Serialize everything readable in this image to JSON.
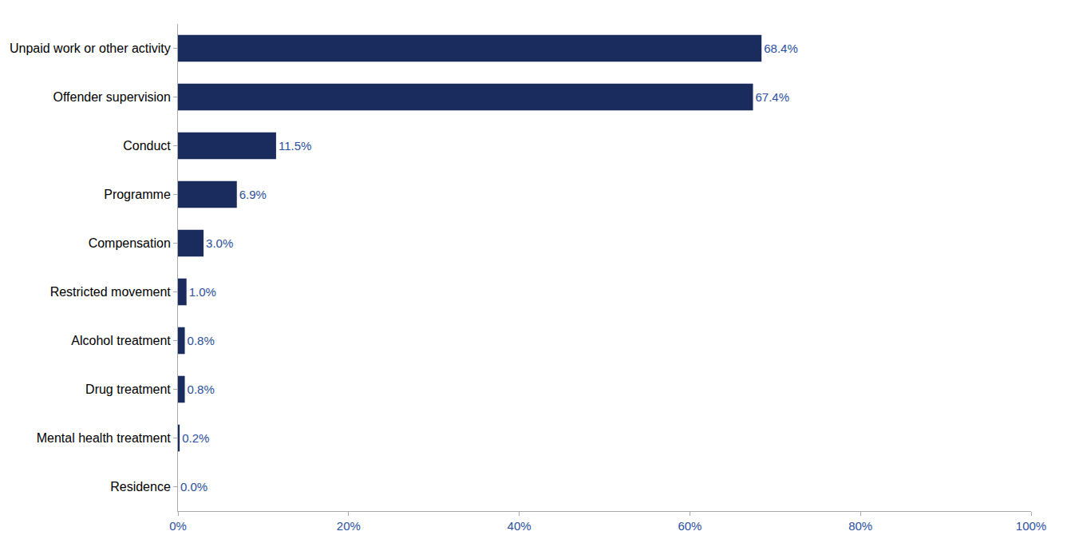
{
  "chart_data": {
    "type": "bar",
    "orientation": "horizontal",
    "categories": [
      "Residence",
      "Mental health treatment",
      "Drug treatment",
      "Alcohol treatment",
      "Restricted movement",
      "Compensation",
      "Programme",
      "Conduct",
      "Offender supervision",
      "Unpaid work or other activity"
    ],
    "values": [
      0.0,
      0.2,
      0.8,
      0.8,
      1.0,
      3.0,
      6.9,
      11.5,
      67.4,
      68.4
    ],
    "value_labels": [
      "0.0%",
      "0.2%",
      "0.8%",
      "0.8%",
      "1.0%",
      "3.0%",
      "6.9%",
      "11.5%",
      "67.4%",
      "68.4%"
    ],
    "data_labels": true,
    "color": "#1a2b5e",
    "xlim": [
      0,
      100
    ],
    "xticks": [
      {
        "value": 0,
        "label": "0%"
      },
      {
        "value": 20,
        "label": "20%"
      },
      {
        "value": 40,
        "label": "40%"
      },
      {
        "value": 60,
        "label": "60%"
      },
      {
        "value": 80,
        "label": "80%"
      },
      {
        "value": 100,
        "label": "100%"
      }
    ],
    "grid": false
  }
}
